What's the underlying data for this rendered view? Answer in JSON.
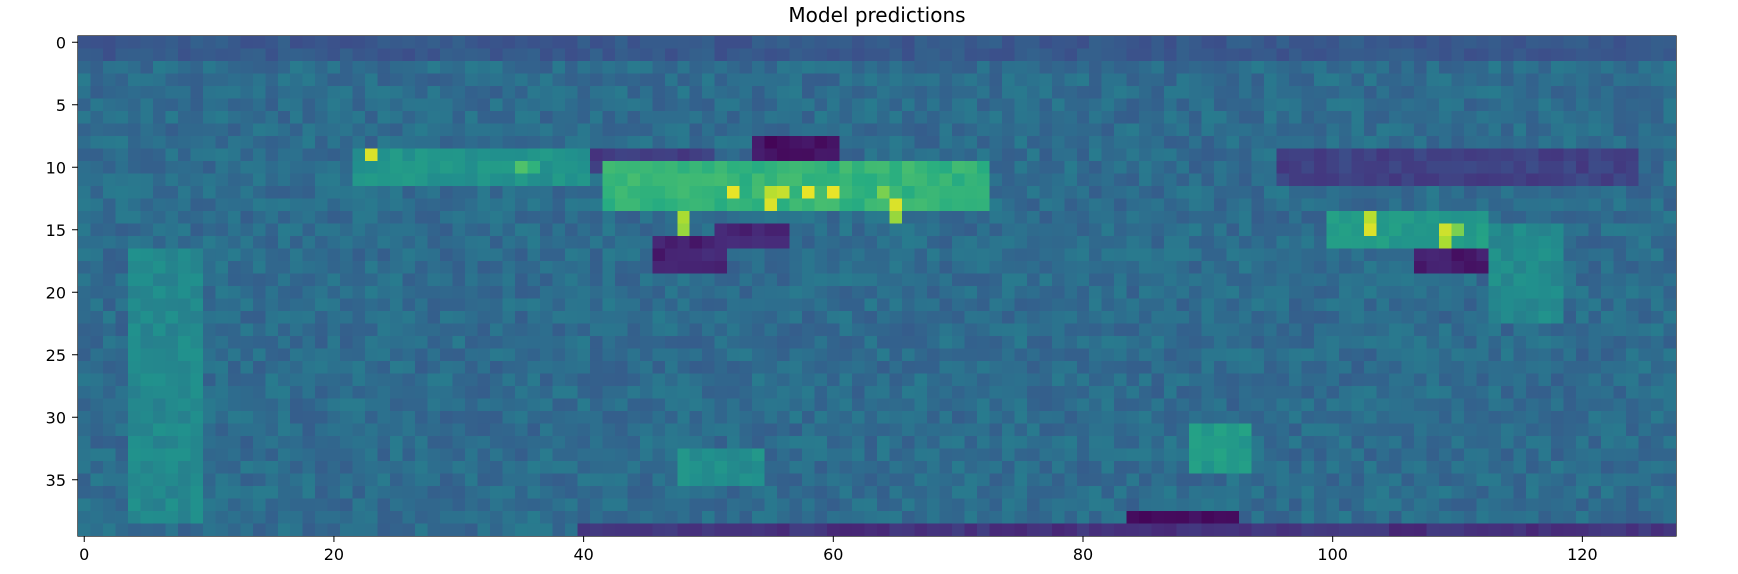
{
  "chart_data": {
    "type": "heatmap",
    "title": "Model predictions",
    "colormap": "viridis",
    "rows": 40,
    "cols": 128,
    "xlim": [
      -0.5,
      127.5
    ],
    "ylim": [
      39.5,
      -0.5
    ],
    "x_ticks": [
      0,
      20,
      40,
      60,
      80,
      100,
      120
    ],
    "y_ticks": [
      0,
      5,
      10,
      15,
      20,
      25,
      30,
      35
    ],
    "x_tick_labels": [
      "0",
      "20",
      "40",
      "60",
      "80",
      "100",
      "120"
    ],
    "y_tick_labels": [
      "0",
      "5",
      "10",
      "15",
      "20",
      "25",
      "30",
      "35"
    ],
    "value_range": [
      0,
      1
    ],
    "background_value": 0.36,
    "bright_cells": [
      {
        "x": 23,
        "y": 9,
        "value": 0.95
      },
      {
        "x": 35,
        "y": 10,
        "value": 0.72
      },
      {
        "x": 36,
        "y": 10,
        "value": 0.65
      },
      {
        "x": 44,
        "y": 11,
        "value": 0.7
      },
      {
        "x": 48,
        "y": 14,
        "value": 0.88
      },
      {
        "x": 48,
        "y": 15,
        "value": 0.85
      },
      {
        "x": 52,
        "y": 12,
        "value": 0.97
      },
      {
        "x": 55,
        "y": 12,
        "value": 0.9
      },
      {
        "x": 55,
        "y": 13,
        "value": 0.95
      },
      {
        "x": 56,
        "y": 12,
        "value": 0.92
      },
      {
        "x": 58,
        "y": 12,
        "value": 0.97
      },
      {
        "x": 60,
        "y": 12,
        "value": 0.97
      },
      {
        "x": 64,
        "y": 12,
        "value": 0.8
      },
      {
        "x": 65,
        "y": 13,
        "value": 0.95
      },
      {
        "x": 65,
        "y": 14,
        "value": 0.85
      },
      {
        "x": 103,
        "y": 14,
        "value": 0.9
      },
      {
        "x": 103,
        "y": 15,
        "value": 0.95
      },
      {
        "x": 109,
        "y": 15,
        "value": 0.93
      },
      {
        "x": 109,
        "y": 16,
        "value": 0.88
      },
      {
        "x": 110,
        "y": 15,
        "value": 0.8
      }
    ],
    "bands": [
      {
        "x0": 42,
        "x1": 72,
        "y0": 10,
        "y1": 13,
        "value": 0.66
      },
      {
        "x0": 22,
        "x1": 40,
        "y0": 9,
        "y1": 11,
        "value": 0.52
      },
      {
        "x0": 100,
        "x1": 112,
        "y0": 14,
        "y1": 16,
        "value": 0.55
      },
      {
        "x0": 4,
        "x1": 9,
        "y0": 17,
        "y1": 38,
        "value": 0.47
      },
      {
        "x0": 113,
        "x1": 118,
        "y0": 15,
        "y1": 22,
        "value": 0.48
      },
      {
        "x0": 89,
        "x1": 93,
        "y0": 31,
        "y1": 34,
        "value": 0.55
      },
      {
        "x0": 48,
        "x1": 54,
        "y0": 33,
        "y1": 35,
        "value": 0.5
      }
    ],
    "dark_regions": [
      {
        "x0": 54,
        "x1": 60,
        "y0": 8,
        "y1": 9,
        "value": 0.05
      },
      {
        "x0": 46,
        "x1": 51,
        "y0": 16,
        "y1": 18,
        "value": 0.1
      },
      {
        "x0": 51,
        "x1": 56,
        "y0": 15,
        "y1": 16,
        "value": 0.1
      },
      {
        "x0": 107,
        "x1": 112,
        "y0": 17,
        "y1": 18,
        "value": 0.08
      },
      {
        "x0": 84,
        "x1": 92,
        "y0": 38,
        "y1": 39,
        "value": 0.02
      },
      {
        "x0": 40,
        "x1": 128,
        "y0": 39,
        "y1": 39,
        "value": 0.15
      },
      {
        "x0": 0,
        "x1": 128,
        "y0": 0,
        "y1": 1,
        "value": 0.28
      },
      {
        "x0": 40,
        "x1": 50,
        "y0": 9,
        "y1": 10,
        "value": 0.18
      },
      {
        "x0": 96,
        "x1": 124,
        "y0": 9,
        "y1": 11,
        "value": 0.2
      }
    ]
  }
}
